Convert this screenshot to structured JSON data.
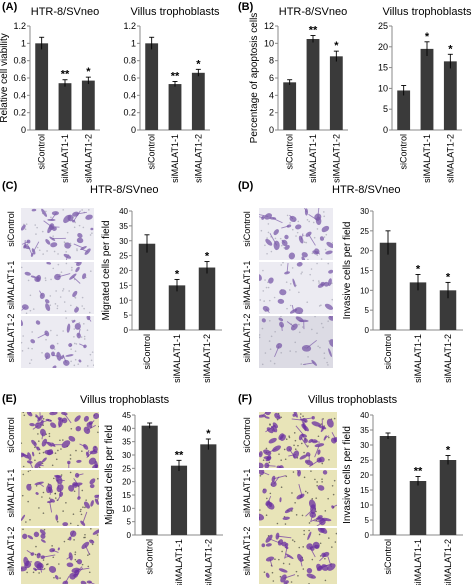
{
  "panels": {
    "A": {
      "letter": "(A)"
    },
    "B": {
      "letter": "(B)"
    },
    "C": {
      "letter": "(C)",
      "title": "HTR-8/SVneo",
      "image_rows": [
        "siControl",
        "siMALAT1-1",
        "siMALAT1-2"
      ]
    },
    "D": {
      "letter": "(D)",
      "title": "HTR-8/SVneo",
      "image_rows": [
        "siControl",
        "siMALAT1-1",
        "siMALAT1-2"
      ]
    },
    "E": {
      "letter": "(E)",
      "title": "Villus trophoblasts",
      "image_rows": [
        "siControl",
        "siMALAT1-1",
        "siMALAT1-2"
      ]
    },
    "F": {
      "letter": "(F)",
      "title": "Villus trophoblasts",
      "image_rows": [
        "siControl",
        "siMALAT1-1",
        "siMALAT1-2"
      ]
    }
  },
  "colors": {
    "bar": "#3a3a3a",
    "axis": "#888888",
    "stain_htr": "#7a5aa8",
    "stain_villus": "#6a2fa0",
    "villus_bg": "#e8e4b8"
  },
  "chart_data": [
    {
      "id": "A1",
      "type": "bar",
      "title": "HTR-8/SVneo",
      "ylabel": "Relative cell viability",
      "categories": [
        "siControl",
        "siMALAT1-1",
        "siMALAT1-2"
      ],
      "values": [
        1.0,
        0.54,
        0.57
      ],
      "errors": [
        0.07,
        0.04,
        0.04
      ],
      "significance": [
        "",
        "**",
        "*"
      ],
      "ylim": [
        0,
        1.2
      ],
      "yticks": [
        "0",
        "0.2",
        "0.4",
        "0.6",
        "0.8",
        "1",
        "1.2"
      ]
    },
    {
      "id": "A2",
      "type": "bar",
      "title": "Villus trophoblasts",
      "ylabel": "",
      "categories": [
        "siControl",
        "siMALAT1-1",
        "siMALAT1-2"
      ],
      "values": [
        1.0,
        0.53,
        0.66
      ],
      "errors": [
        0.07,
        0.03,
        0.04
      ],
      "significance": [
        "",
        "**",
        "*"
      ],
      "ylim": [
        0,
        1.2
      ],
      "yticks": [
        "0",
        "0.2",
        "0.4",
        "0.6",
        "0.8",
        "1",
        "1.2"
      ]
    },
    {
      "id": "B1",
      "type": "bar",
      "title": "HTR-8/SVneo",
      "ylabel": "Percentage of apoptosis cells",
      "categories": [
        "siControl",
        "siMALAT1-1",
        "siMALAT1-2"
      ],
      "values": [
        5.5,
        10.5,
        8.5
      ],
      "errors": [
        0.3,
        0.4,
        0.6
      ],
      "significance": [
        "",
        "**",
        "*"
      ],
      "ylim": [
        0,
        12
      ],
      "yticks": [
        "0",
        "2",
        "4",
        "6",
        "8",
        "10",
        "12"
      ]
    },
    {
      "id": "B2",
      "type": "bar",
      "title": "Villus trophoblasts",
      "ylabel": "",
      "categories": [
        "siControl",
        "siMALAT1-1",
        "siMALAT1-2"
      ],
      "values": [
        9.5,
        19.5,
        16.5
      ],
      "errors": [
        1.2,
        1.7,
        1.7
      ],
      "significance": [
        "",
        "*",
        "*"
      ],
      "ylim": [
        0,
        25
      ],
      "yticks": [
        "0",
        "5",
        "10",
        "15",
        "20",
        "25"
      ]
    },
    {
      "id": "C",
      "type": "bar",
      "title": "",
      "ylabel": "Migrated cells per field",
      "categories": [
        "siControl",
        "siMALAT1-1",
        "siMALAT1-2"
      ],
      "values": [
        29,
        15,
        21
      ],
      "errors": [
        3,
        2,
        2
      ],
      "significance": [
        "",
        "*",
        "*"
      ],
      "ylim": [
        0,
        40
      ],
      "yticks": [
        "0",
        "5",
        "10",
        "15",
        "20",
        "25",
        "30",
        "35",
        "40"
      ]
    },
    {
      "id": "D",
      "type": "bar",
      "title": "",
      "ylabel": "Invasive cells per field",
      "categories": [
        "siControl",
        "siMALAT1-1",
        "siMALAT1-2"
      ],
      "values": [
        22,
        12,
        10
      ],
      "errors": [
        3,
        2,
        2
      ],
      "significance": [
        "",
        "*",
        "*"
      ],
      "ylim": [
        0,
        30
      ],
      "yticks": [
        "0",
        "5",
        "10",
        "15",
        "20",
        "25",
        "30"
      ]
    },
    {
      "id": "E",
      "type": "bar",
      "title": "",
      "ylabel": "Migrated cells per field",
      "categories": [
        "siControl",
        "siMALAT1-1",
        "siMALAT1-2"
      ],
      "values": [
        41,
        26,
        34
      ],
      "errors": [
        1,
        2,
        2
      ],
      "significance": [
        "",
        "**",
        "*"
      ],
      "ylim": [
        0,
        45
      ],
      "yticks": [
        "0",
        "5",
        "10",
        "15",
        "20",
        "25",
        "30",
        "35",
        "40",
        "45"
      ]
    },
    {
      "id": "F",
      "type": "bar",
      "title": "",
      "ylabel": "Invasive cells per field",
      "categories": [
        "siControl",
        "siMALAT1-1",
        "siMALAT1-2"
      ],
      "values": [
        33,
        18,
        25
      ],
      "errors": [
        1,
        1.5,
        1.5
      ],
      "significance": [
        "",
        "**",
        "*"
      ],
      "ylim": [
        0,
        40
      ],
      "yticks": [
        "0",
        "5",
        "10",
        "15",
        "20",
        "25",
        "30",
        "35",
        "40"
      ]
    }
  ]
}
